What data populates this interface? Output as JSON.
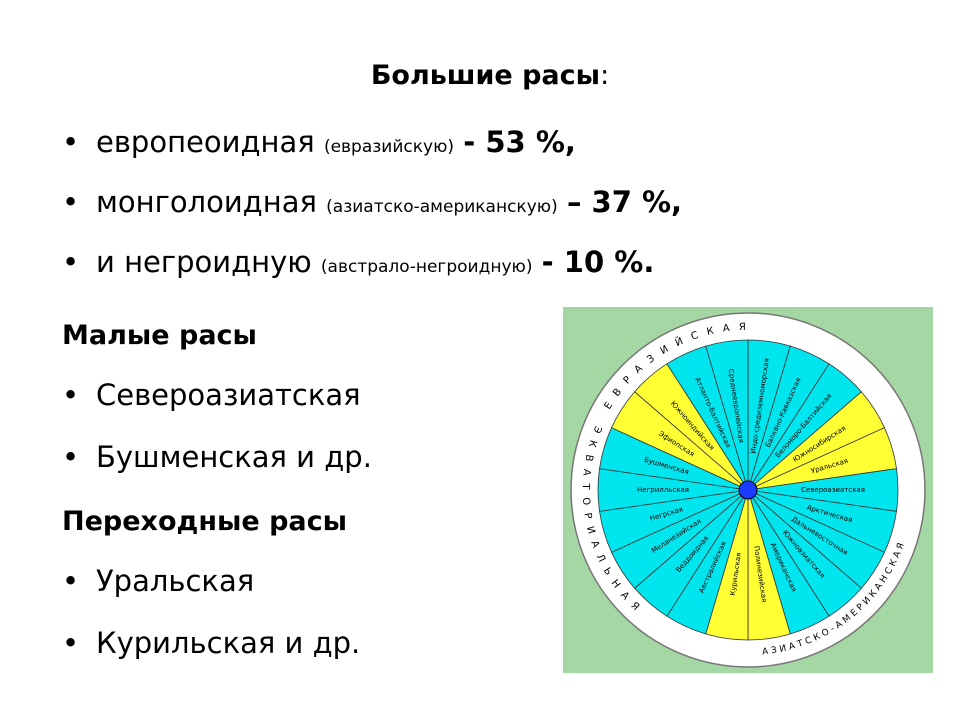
{
  "header": {
    "title": "Большие расы",
    "title_suffix": ":"
  },
  "big_races": [
    {
      "name": "европеоидная",
      "note": "(евразийскую)",
      "share": "- 53 %,"
    },
    {
      "name": "монголоидная",
      "note": "(азиатско-американскую)",
      "share": "– 37 %,"
    },
    {
      "name": "и негроидную",
      "note": "(австрало-негроидную)",
      "share": "- 10 %."
    }
  ],
  "small_races": {
    "title": "Малые расы",
    "items": [
      "Североазиатская",
      "Бушменская и др."
    ]
  },
  "transitional_races": {
    "title": "Переходные расы",
    "items": [
      "Уральская",
      "Курильская и др."
    ]
  },
  "wheel": {
    "rings": [
      "ЕВРАЗИЙСКАЯ",
      "ЭКВАТОРИАЛЬНАЯ",
      "АЗИАТСКО-АМЕРИКАНСКАЯ"
    ],
    "segments": [
      {
        "label": "Индо-средиземноморская",
        "color": "#00e5ee"
      },
      {
        "label": "Балкано-Кавказская",
        "color": "#00e5ee"
      },
      {
        "label": "Беломоро-Балтийская",
        "color": "#00e5ee"
      },
      {
        "label": "Южносибирская",
        "color": "#ffff33"
      },
      {
        "label": "Уральская",
        "color": "#ffff33"
      },
      {
        "label": "Североазиатская",
        "color": "#00e5ee"
      },
      {
        "label": "Арктическая",
        "color": "#00e5ee"
      },
      {
        "label": "Дальневосточная",
        "color": "#00e5ee"
      },
      {
        "label": "Южноазиатская",
        "color": "#00e5ee"
      },
      {
        "label": "Американская",
        "color": "#00e5ee"
      },
      {
        "label": "Полинезийская",
        "color": "#ffff33"
      },
      {
        "label": "Курильская",
        "color": "#ffff33"
      },
      {
        "label": "Австралийская",
        "color": "#00e5ee"
      },
      {
        "label": "Веддоидная",
        "color": "#00e5ee"
      },
      {
        "label": "Меланезийская",
        "color": "#00e5ee"
      },
      {
        "label": "Негрская",
        "color": "#00e5ee"
      },
      {
        "label": "Негрилльская",
        "color": "#00e5ee"
      },
      {
        "label": "Бушменская",
        "color": "#00e5ee"
      },
      {
        "label": "Эфиопская",
        "color": "#ffff33"
      },
      {
        "label": "Южноиндийская",
        "color": "#ffff33"
      },
      {
        "label": "Атланто-Балтийская",
        "color": "#00e5ee"
      },
      {
        "label": "Среднеевропейская",
        "color": "#00e5ee"
      }
    ]
  }
}
